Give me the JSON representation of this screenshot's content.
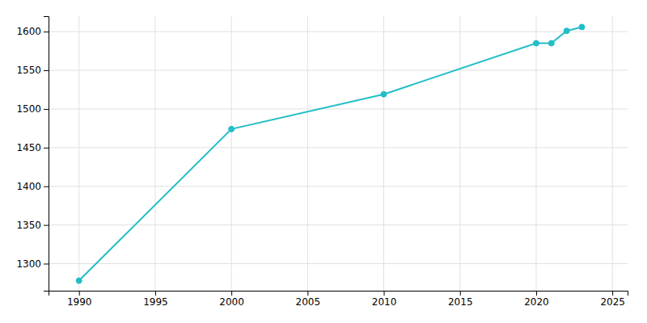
{
  "chart_data": {
    "type": "line",
    "x": [
      1990,
      2000,
      2010,
      2020,
      2021,
      2022,
      2023
    ],
    "values": [
      1278,
      1474,
      1519,
      1585,
      1585,
      1601,
      1606
    ],
    "color": "#22bec8",
    "marker": "circle",
    "xlim": [
      1988,
      2026
    ],
    "ylim": [
      1265,
      1620
    ],
    "xticks": [
      1990,
      1995,
      2000,
      2005,
      2010,
      2015,
      2020,
      2025
    ],
    "yticks": [
      1300,
      1350,
      1400,
      1450,
      1500,
      1550,
      1600
    ],
    "grid": true
  }
}
